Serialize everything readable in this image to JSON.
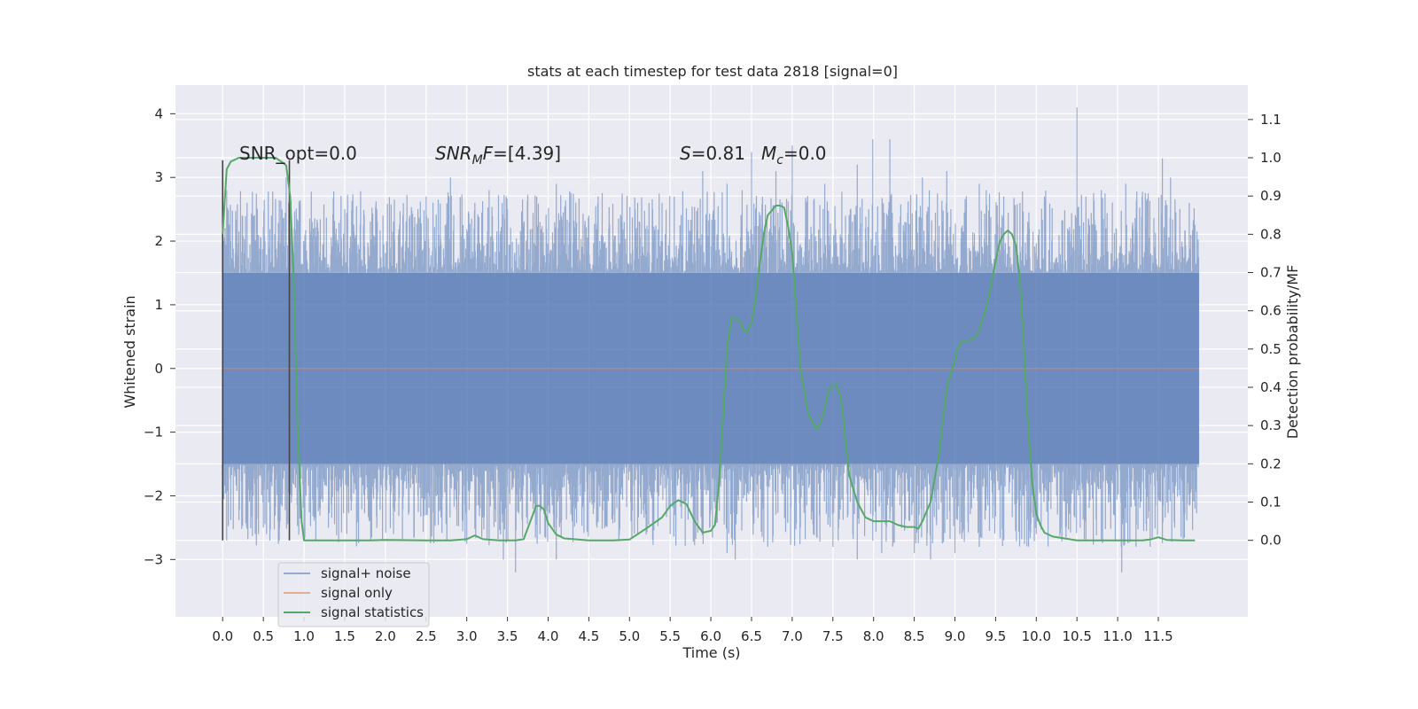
{
  "chart_data": {
    "type": "line",
    "title": "stats at each timestep for test data 2818 [signal=0]",
    "xlabel": "Time (s)",
    "ylabel_left": "Whitened strain",
    "ylabel_right": "Detection probability/MF",
    "xlim": [
      -0.58,
      12.6
    ],
    "ylim_left": [
      -3.9,
      4.45
    ],
    "ylim_right": [
      -0.2,
      1.19
    ],
    "x_ticks": [
      "0.0",
      "0.5",
      "1.0",
      "1.5",
      "2.0",
      "2.5",
      "3.0",
      "3.5",
      "4.0",
      "4.5",
      "5.0",
      "5.5",
      "6.0",
      "6.5",
      "7.0",
      "7.5",
      "8.0",
      "8.5",
      "9.0",
      "9.5",
      "10.0",
      "10.5",
      "11.0",
      "11.5"
    ],
    "y_ticks_left": [
      "−3",
      "−2",
      "−1",
      "0",
      "1",
      "2",
      "3",
      "4"
    ],
    "y_ticks_right": [
      "0.0",
      "0.1",
      "0.2",
      "0.3",
      "0.4",
      "0.5",
      "0.6",
      "0.7",
      "0.8",
      "0.9",
      "1.0",
      "1.1"
    ],
    "grid": true,
    "background": "#eaeaf2",
    "legend_placement": "lower-left",
    "annotations": {
      "snr_opt": "SNR_opt=0.0",
      "snr_mf_italic": "SNR",
      "snr_mf_sub": "M",
      "snr_mf_italic2": "F",
      "snr_mf_value": "=[4.39]",
      "s_italic": "S",
      "s_value": "=0.81",
      "mc_italic": "M",
      "mc_sub": "c",
      "mc_value": "=0.0"
    },
    "window_markers_x": [
      0.0,
      0.82
    ],
    "series": [
      {
        "name": "signal+ noise",
        "axis": "left",
        "color": "#4c72b0",
        "x_range": [
          0.0,
          12.0
        ],
        "band": [
          -1.5,
          1.5
        ],
        "spikes_up": [
          [
            0.05,
            2.8
          ],
          [
            0.3,
            2.6
          ],
          [
            0.6,
            2.4
          ],
          [
            0.78,
            3.0
          ],
          [
            1.1,
            2.3
          ],
          [
            1.5,
            2.5
          ],
          [
            1.9,
            2.3
          ],
          [
            2.3,
            2.4
          ],
          [
            2.5,
            2.7
          ],
          [
            2.8,
            3.0
          ],
          [
            3.1,
            2.6
          ],
          [
            3.5,
            2.5
          ],
          [
            3.9,
            2.3
          ],
          [
            4.1,
            2.9
          ],
          [
            4.5,
            2.4
          ],
          [
            4.9,
            2.3
          ],
          [
            5.1,
            2.6
          ],
          [
            5.4,
            2.6
          ],
          [
            5.9,
            3.1
          ],
          [
            6.2,
            2.9
          ],
          [
            6.5,
            3.4
          ],
          [
            6.8,
            3.1
          ],
          [
            7.0,
            3.5
          ],
          [
            7.4,
            2.9
          ],
          [
            7.8,
            3.2
          ],
          [
            7.99,
            3.6
          ],
          [
            8.2,
            3.6
          ],
          [
            8.6,
            3.0
          ],
          [
            8.9,
            3.1
          ],
          [
            9.3,
            2.9
          ],
          [
            9.6,
            2.7
          ],
          [
            9.8,
            2.6
          ],
          [
            10.1,
            2.7
          ],
          [
            10.5,
            4.1
          ],
          [
            10.8,
            2.8
          ],
          [
            11.1,
            2.9
          ],
          [
            11.3,
            2.7
          ],
          [
            11.55,
            3.3
          ],
          [
            11.65,
            3.0
          ],
          [
            11.9,
            2.1
          ]
        ],
        "spikes_down": [
          [
            0.05,
            -2.7
          ],
          [
            0.4,
            -2.6
          ],
          [
            0.7,
            -2.5
          ],
          [
            1.0,
            -2.7
          ],
          [
            1.3,
            -2.5
          ],
          [
            1.8,
            -2.4
          ],
          [
            2.1,
            -2.6
          ],
          [
            2.5,
            -2.3
          ],
          [
            2.9,
            -2.3
          ],
          [
            3.2,
            -2.2
          ],
          [
            3.45,
            -3.0
          ],
          [
            3.6,
            -3.2
          ],
          [
            3.9,
            -2.6
          ],
          [
            4.1,
            -3.0
          ],
          [
            4.6,
            -2.5
          ],
          [
            5.1,
            -2.6
          ],
          [
            5.5,
            -2.6
          ],
          [
            5.8,
            -2.7
          ],
          [
            6.2,
            -2.9
          ],
          [
            6.3,
            -3.0
          ],
          [
            6.7,
            -2.8
          ],
          [
            7.1,
            -2.5
          ],
          [
            7.5,
            -2.8
          ],
          [
            7.8,
            -3.0
          ],
          [
            8.1,
            -2.9
          ],
          [
            8.5,
            -2.9
          ],
          [
            8.7,
            -3.0
          ],
          [
            9.0,
            -2.9
          ],
          [
            9.3,
            -2.8
          ],
          [
            9.6,
            -2.7
          ],
          [
            10.0,
            -2.6
          ],
          [
            10.3,
            -2.5
          ],
          [
            10.8,
            -2.7
          ],
          [
            11.05,
            -3.2
          ],
          [
            11.4,
            -2.8
          ],
          [
            11.7,
            -2.5
          ],
          [
            11.95,
            -2.2
          ]
        ]
      },
      {
        "name": "signal only",
        "axis": "left",
        "color": "#dd8452",
        "x": [
          0.0,
          12.0
        ],
        "y": [
          0.0,
          0.0
        ]
      },
      {
        "name": "signal statistics",
        "axis": "right",
        "color": "#55a868",
        "x": [
          0.0,
          0.05,
          0.1,
          0.2,
          0.3,
          0.5,
          0.65,
          0.72,
          0.78,
          0.83,
          0.87,
          0.92,
          0.97,
          1.0,
          1.2,
          1.5,
          1.8,
          2.0,
          2.5,
          2.8,
          3.0,
          3.1,
          3.2,
          3.4,
          3.6,
          3.7,
          3.8,
          3.85,
          3.9,
          3.95,
          4.0,
          4.1,
          4.2,
          4.5,
          4.8,
          5.0,
          5.2,
          5.4,
          5.5,
          5.6,
          5.7,
          5.8,
          5.9,
          6.0,
          6.05,
          6.1,
          6.2,
          6.25,
          6.3,
          6.35,
          6.4,
          6.45,
          6.5,
          6.55,
          6.6,
          6.65,
          6.7,
          6.8,
          6.85,
          6.9,
          6.95,
          7.0,
          7.05,
          7.1,
          7.2,
          7.3,
          7.35,
          7.4,
          7.45,
          7.5,
          7.55,
          7.6,
          7.65,
          7.7,
          7.8,
          7.9,
          8.0,
          8.1,
          8.2,
          8.3,
          8.4,
          8.5,
          8.55,
          8.6,
          8.7,
          8.8,
          8.9,
          9.0,
          9.05,
          9.1,
          9.2,
          9.25,
          9.3,
          9.4,
          9.5,
          9.55,
          9.6,
          9.65,
          9.7,
          9.75,
          9.8,
          9.85,
          9.9,
          9.95,
          10.0,
          10.05,
          10.1,
          10.2,
          10.5,
          11.0,
          11.3,
          11.4,
          11.5,
          11.6,
          11.8,
          11.95
        ],
        "y": [
          0.8,
          0.97,
          0.99,
          1.0,
          1.0,
          1.0,
          1.0,
          0.99,
          0.98,
          0.9,
          0.7,
          0.3,
          0.05,
          0.0,
          0.0,
          0.0,
          0.0,
          0.001,
          0.0,
          0.0,
          0.003,
          0.013,
          0.003,
          0.0,
          0.0,
          0.003,
          0.06,
          0.09,
          0.09,
          0.08,
          0.045,
          0.015,
          0.005,
          0.0,
          0.0,
          0.002,
          0.03,
          0.06,
          0.09,
          0.105,
          0.095,
          0.05,
          0.02,
          0.025,
          0.04,
          0.15,
          0.5,
          0.58,
          0.58,
          0.575,
          0.55,
          0.545,
          0.57,
          0.63,
          0.72,
          0.8,
          0.85,
          0.875,
          0.875,
          0.87,
          0.82,
          0.75,
          0.6,
          0.45,
          0.33,
          0.29,
          0.31,
          0.345,
          0.395,
          0.405,
          0.405,
          0.37,
          0.27,
          0.17,
          0.1,
          0.06,
          0.05,
          0.05,
          0.05,
          0.04,
          0.035,
          0.035,
          0.03,
          0.05,
          0.1,
          0.22,
          0.4,
          0.47,
          0.51,
          0.52,
          0.525,
          0.53,
          0.55,
          0.62,
          0.73,
          0.78,
          0.8,
          0.81,
          0.8,
          0.77,
          0.68,
          0.5,
          0.3,
          0.15,
          0.07,
          0.04,
          0.02,
          0.01,
          0.0,
          0.0,
          0.0,
          0.002,
          0.008,
          0.001,
          0.0,
          0.0
        ]
      }
    ]
  }
}
